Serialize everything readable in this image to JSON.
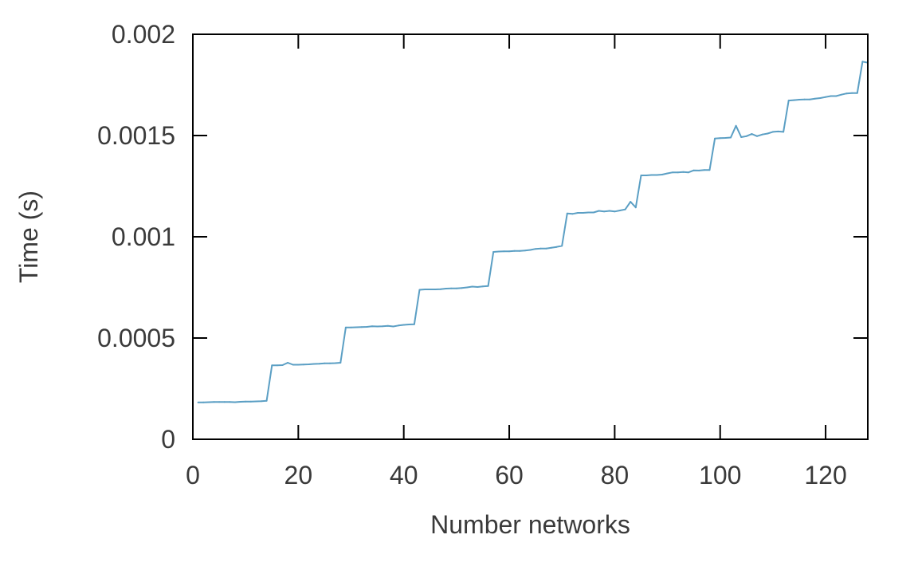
{
  "chart_data": {
    "type": "line",
    "title": "",
    "xlabel": "Number networks",
    "ylabel": "Time (s)",
    "xlim": [
      0,
      128
    ],
    "ylim": [
      0,
      0.002
    ],
    "grid": false,
    "legend": "none",
    "x_ticks": [
      {
        "value": 0,
        "label": "0"
      },
      {
        "value": 20,
        "label": "20"
      },
      {
        "value": 40,
        "label": "40"
      },
      {
        "value": 60,
        "label": "60"
      },
      {
        "value": 80,
        "label": "80"
      },
      {
        "value": 100,
        "label": "100"
      },
      {
        "value": 120,
        "label": "120"
      }
    ],
    "y_ticks": [
      {
        "value": 0,
        "label": "0"
      },
      {
        "value": 0.0005,
        "label": "0.0005"
      },
      {
        "value": 0.001,
        "label": "0.001"
      },
      {
        "value": 0.0015,
        "label": "0.0015"
      },
      {
        "value": 0.002,
        "label": "0.002"
      }
    ],
    "series": [
      {
        "color": "#5b9fc4",
        "x": [
          1,
          2,
          3,
          4,
          5,
          6,
          7,
          8,
          9,
          10,
          11,
          12,
          13,
          14,
          15,
          16,
          17,
          18,
          19,
          20,
          21,
          22,
          23,
          24,
          25,
          26,
          27,
          28,
          29,
          30,
          31,
          32,
          33,
          34,
          35,
          36,
          37,
          38,
          39,
          40,
          41,
          42,
          43,
          44,
          45,
          46,
          47,
          48,
          49,
          50,
          51,
          52,
          53,
          54,
          55,
          56,
          57,
          58,
          59,
          60,
          61,
          62,
          63,
          64,
          65,
          66,
          67,
          68,
          69,
          70,
          71,
          72,
          73,
          74,
          75,
          76,
          77,
          78,
          79,
          80,
          81,
          82,
          83,
          84,
          85,
          86,
          87,
          88,
          89,
          90,
          91,
          92,
          93,
          94,
          95,
          96,
          97,
          98,
          99,
          100,
          101,
          102,
          103,
          104,
          105,
          106,
          107,
          108,
          109,
          110,
          111,
          112,
          113,
          114,
          115,
          116,
          117,
          118,
          119,
          120,
          121,
          122,
          123,
          124,
          125,
          126,
          127,
          128
        ],
        "y": [
          0.000182,
          0.000182,
          0.000183,
          0.000184,
          0.000184,
          0.000184,
          0.000184,
          0.000183,
          0.000185,
          0.000186,
          0.000186,
          0.000187,
          0.000188,
          0.00019,
          0.000365,
          0.000365,
          0.000366,
          0.000378,
          0.000368,
          0.000368,
          0.000369,
          0.00037,
          0.000372,
          0.000373,
          0.000375,
          0.000375,
          0.000376,
          0.000378,
          0.000552,
          0.000552,
          0.000553,
          0.000554,
          0.000555,
          0.000558,
          0.000557,
          0.000558,
          0.00056,
          0.000557,
          0.000562,
          0.000565,
          0.000567,
          0.000568,
          0.000738,
          0.00074,
          0.00074,
          0.00074,
          0.000741,
          0.000744,
          0.000745,
          0.000745,
          0.000747,
          0.00075,
          0.000754,
          0.000752,
          0.000755,
          0.000757,
          0.000925,
          0.000927,
          0.000928,
          0.000928,
          0.00093,
          0.00093,
          0.000932,
          0.000935,
          0.00094,
          0.000942,
          0.000942,
          0.000946,
          0.00095,
          0.000955,
          0.001115,
          0.001113,
          0.001118,
          0.001118,
          0.00112,
          0.00112,
          0.001128,
          0.001125,
          0.001128,
          0.001125,
          0.00113,
          0.001135,
          0.001173,
          0.001145,
          0.001303,
          0.001303,
          0.001305,
          0.001305,
          0.001307,
          0.001313,
          0.001318,
          0.001318,
          0.00132,
          0.001318,
          0.001328,
          0.001327,
          0.00133,
          0.00133,
          0.001485,
          0.001487,
          0.001488,
          0.00149,
          0.001548,
          0.001492,
          0.001497,
          0.001508,
          0.001497,
          0.001505,
          0.00151,
          0.001518,
          0.00152,
          0.001518,
          0.001673,
          0.001675,
          0.001677,
          0.001678,
          0.001678,
          0.001682,
          0.001685,
          0.00169,
          0.001695,
          0.001695,
          0.001702,
          0.001708,
          0.00171,
          0.00171,
          0.001865,
          0.00186
        ]
      }
    ]
  }
}
